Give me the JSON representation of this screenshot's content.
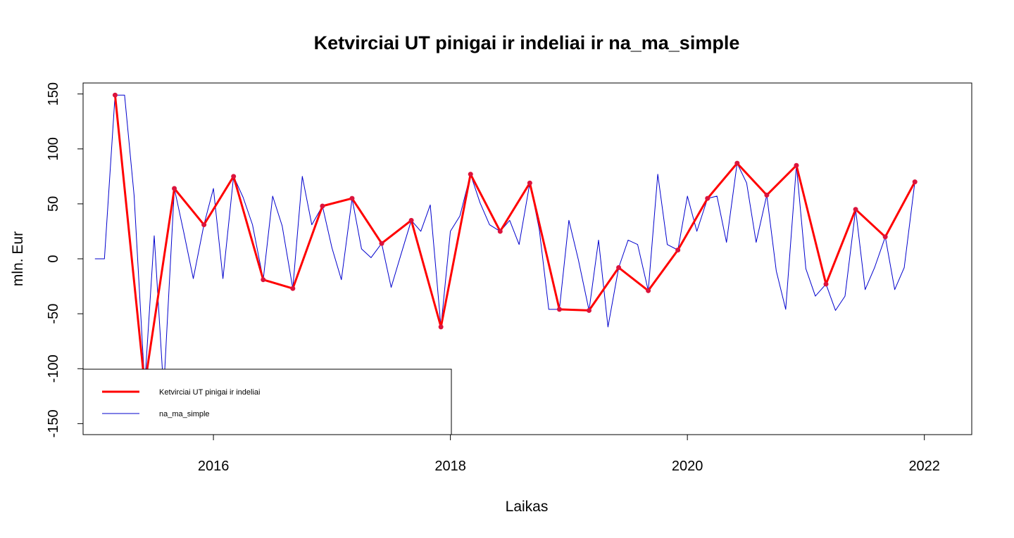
{
  "chart_data": {
    "type": "line",
    "title": "Ketvirciai UT pinigai ir indeliai ir na_ma_simple",
    "xlabel": "Laikas",
    "ylabel": "mln. Eur",
    "xlim": [
      2014.9,
      2022.4
    ],
    "ylim": [
      -160,
      160
    ],
    "x_ticks": [
      2016,
      2018,
      2020,
      2022
    ],
    "y_ticks": [
      -150,
      -100,
      -50,
      0,
      50,
      100,
      150
    ],
    "grid": false,
    "legend_position": "bottom-left",
    "series": [
      {
        "name": "Ketvirciai UT pinigai ir indeliai",
        "color": "#ff0000",
        "style": "line-with-points",
        "x": [
          2015.17,
          2015.42,
          2015.67,
          2015.92,
          2016.17,
          2016.42,
          2016.67,
          2016.92,
          2017.17,
          2017.42,
          2017.67,
          2017.92,
          2018.17,
          2018.42,
          2018.67,
          2018.92,
          2019.17,
          2019.42,
          2019.67,
          2019.92,
          2020.17,
          2020.42,
          2020.67,
          2020.92,
          2021.17,
          2021.42,
          2021.67,
          2021.92
        ],
        "values": [
          149,
          -115,
          64,
          31,
          75,
          -19,
          -27,
          48,
          55,
          14,
          35,
          -62,
          77,
          25,
          69,
          -46,
          -47,
          -8,
          -29,
          8,
          55,
          87,
          58,
          85,
          -23,
          45,
          20,
          70
        ]
      },
      {
        "name": "na_ma_simple",
        "color": "#0000cd",
        "style": "line",
        "x": [
          2015.0,
          2015.08,
          2015.17,
          2015.25,
          2015.33,
          2015.42,
          2015.5,
          2015.58,
          2015.67,
          2015.75,
          2015.83,
          2015.92,
          2016.0,
          2016.08,
          2016.17,
          2016.25,
          2016.33,
          2016.42,
          2016.5,
          2016.58,
          2016.67,
          2016.75,
          2016.83,
          2016.92,
          2017.0,
          2017.08,
          2017.17,
          2017.25,
          2017.33,
          2017.42,
          2017.5,
          2017.58,
          2017.67,
          2017.75,
          2017.83,
          2017.92,
          2018.0,
          2018.08,
          2018.17,
          2018.25,
          2018.33,
          2018.42,
          2018.5,
          2018.58,
          2018.67,
          2018.75,
          2018.83,
          2018.92,
          2019.0,
          2019.08,
          2019.17,
          2019.25,
          2019.33,
          2019.42,
          2019.5,
          2019.58,
          2019.67,
          2019.75,
          2019.83,
          2019.92,
          2020.0,
          2020.08,
          2020.17,
          2020.25,
          2020.33,
          2020.42,
          2020.5,
          2020.58,
          2020.67,
          2020.75,
          2020.83,
          2020.92,
          2021.0,
          2021.08,
          2021.17,
          2021.25,
          2021.33,
          2021.42,
          2021.5,
          2021.58,
          2021.67,
          2021.75,
          2021.83,
          2021.92
        ],
        "values": [
          0,
          0,
          149,
          149,
          58,
          -115,
          21,
          -120,
          64,
          24,
          -18,
          31,
          64,
          -18,
          75,
          56,
          31,
          -19,
          57,
          30,
          -27,
          75,
          31,
          48,
          10,
          -19,
          55,
          9,
          1,
          14,
          -26,
          3,
          35,
          25,
          49,
          -62,
          25,
          39,
          77,
          51,
          31,
          25,
          35,
          13,
          69,
          27,
          -46,
          -46,
          35,
          -1,
          -47,
          17,
          -62,
          -8,
          17,
          13,
          -29,
          77,
          13,
          8,
          57,
          25,
          55,
          57,
          15,
          87,
          69,
          15,
          58,
          -11,
          -46,
          85,
          -9,
          -34,
          -23,
          -47,
          -34,
          45,
          -28,
          -8,
          20,
          -28,
          -8,
          70
        ]
      }
    ]
  }
}
